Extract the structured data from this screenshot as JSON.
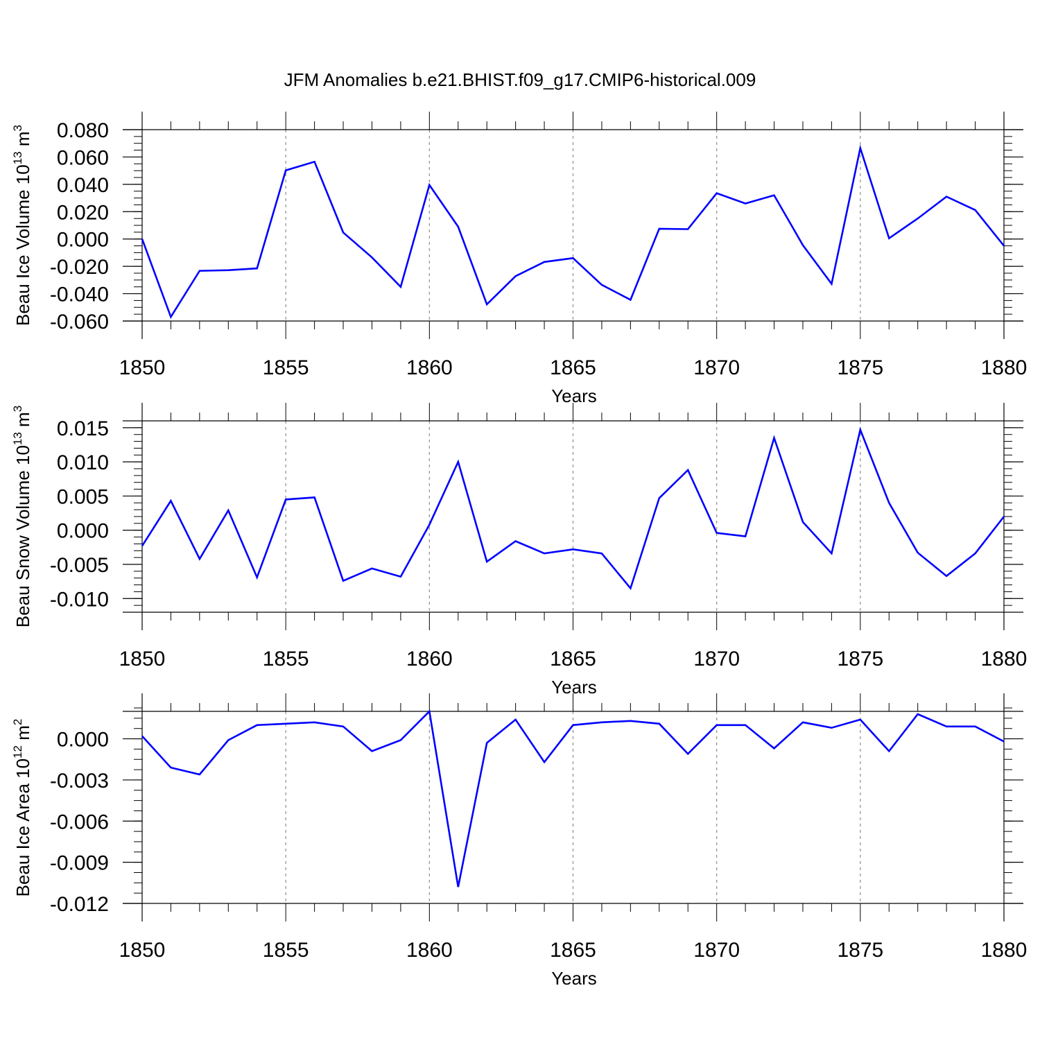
{
  "title": "JFM Anomalies b.e21.BHIST.f09_g17.CMIP6-historical.009",
  "colors": {
    "line": "#0000ff",
    "axis": "#000000",
    "grid": "#8c8c8c",
    "background": "#ffffff"
  },
  "chart_data": [
    {
      "type": "line",
      "title": "",
      "ylabel": "Beau Ice Volume 10",
      "ylabel_exp": "13",
      "ylabel_unit": " m",
      "ylabel_unit_exp": "3",
      "xlabel": "Years",
      "xlim": [
        1850,
        1880
      ],
      "ylim": [
        -0.06,
        0.08
      ],
      "yticks": [
        -0.06,
        -0.04,
        -0.02,
        0.0,
        0.02,
        0.04,
        0.06,
        0.08
      ],
      "ytick_labels": [
        "-0.060",
        "-0.040",
        "-0.020",
        "0.000",
        "0.020",
        "0.040",
        "0.060",
        "0.080"
      ],
      "yminor_step": 0.005,
      "xticks": [
        1850,
        1855,
        1860,
        1865,
        1870,
        1875,
        1880
      ],
      "xtick_labels": [
        "1850",
        "1855",
        "1860",
        "1865",
        "1870",
        "1875",
        "1880"
      ],
      "vgrid": [
        1855,
        1860,
        1865,
        1870,
        1875
      ],
      "x": [
        1850,
        1851,
        1852,
        1853,
        1854,
        1855,
        1856,
        1857,
        1858,
        1859,
        1860,
        1861,
        1862,
        1863,
        1864,
        1865,
        1866,
        1867,
        1868,
        1869,
        1870,
        1871,
        1872,
        1873,
        1874,
        1875,
        1876,
        1877,
        1878,
        1879,
        1880
      ],
      "series": [
        {
          "name": "Beau Ice Volume",
          "values": [
            0.0,
            -0.057,
            -0.0233,
            -0.0228,
            -0.0215,
            0.0502,
            0.0565,
            0.0048,
            -0.0135,
            -0.035,
            0.0395,
            0.009,
            -0.0478,
            -0.0272,
            -0.0168,
            -0.014,
            -0.0335,
            -0.0445,
            0.0075,
            0.0072,
            0.0335,
            0.026,
            0.032,
            -0.0045,
            -0.0328,
            0.0665,
            0.0005,
            0.015,
            0.031,
            0.0212,
            -0.005
          ]
        }
      ]
    },
    {
      "type": "line",
      "title": "",
      "ylabel": "Beau Snow Volume 10",
      "ylabel_exp": "13",
      "ylabel_unit": " m",
      "ylabel_unit_exp": "3",
      "xlabel": "Years",
      "xlim": [
        1850,
        1880
      ],
      "ylim": [
        -0.012,
        0.016
      ],
      "yticks": [
        -0.01,
        -0.005,
        0.0,
        0.005,
        0.01,
        0.015
      ],
      "ytick_labels": [
        "-0.010",
        "-0.005",
        "0.000",
        "0.005",
        "0.010",
        "0.015"
      ],
      "yminor_step": 0.001,
      "xticks": [
        1850,
        1855,
        1860,
        1865,
        1870,
        1875,
        1880
      ],
      "xtick_labels": [
        "1850",
        "1855",
        "1860",
        "1865",
        "1870",
        "1875",
        "1880"
      ],
      "vgrid": [
        1855,
        1860,
        1865,
        1870,
        1875
      ],
      "x": [
        1850,
        1851,
        1852,
        1853,
        1854,
        1855,
        1856,
        1857,
        1858,
        1859,
        1860,
        1861,
        1862,
        1863,
        1864,
        1865,
        1866,
        1867,
        1868,
        1869,
        1870,
        1871,
        1872,
        1873,
        1874,
        1875,
        1876,
        1877,
        1878,
        1879,
        1880
      ],
      "series": [
        {
          "name": "Beau Snow Volume",
          "values": [
            -0.0023,
            0.0043,
            -0.0042,
            0.0029,
            -0.0069,
            0.0045,
            0.0048,
            -0.0074,
            -0.0056,
            -0.0068,
            0.0008,
            0.01,
            -0.0046,
            -0.0016,
            -0.0034,
            -0.0028,
            -0.0034,
            -0.0085,
            0.0047,
            0.0088,
            -0.0004,
            -0.0009,
            0.0135,
            0.0012,
            -0.0034,
            0.0147,
            0.004,
            -0.0033,
            -0.0067,
            -0.0034,
            0.002
          ]
        }
      ]
    },
    {
      "type": "line",
      "title": "",
      "ylabel": "Beau Ice Area 10",
      "ylabel_exp": "12",
      "ylabel_unit": " m",
      "ylabel_unit_exp": "2",
      "xlabel": "Years",
      "xlim": [
        1850,
        1880
      ],
      "ylim": [
        -0.012,
        0.002
      ],
      "yticks": [
        -0.012,
        -0.009,
        -0.006,
        -0.003,
        0.0
      ],
      "ytick_labels": [
        "-0.012",
        "-0.009",
        "-0.006",
        "-0.003",
        "0.000"
      ],
      "yminor_step": 0.00075,
      "xticks": [
        1850,
        1855,
        1860,
        1865,
        1870,
        1875,
        1880
      ],
      "xtick_labels": [
        "1850",
        "1855",
        "1860",
        "1865",
        "1870",
        "1875",
        "1880"
      ],
      "vgrid": [
        1855,
        1860,
        1865,
        1870,
        1875
      ],
      "x": [
        1850,
        1851,
        1852,
        1853,
        1854,
        1855,
        1856,
        1857,
        1858,
        1859,
        1860,
        1861,
        1862,
        1863,
        1864,
        1865,
        1866,
        1867,
        1868,
        1869,
        1870,
        1871,
        1872,
        1873,
        1874,
        1875,
        1876,
        1877,
        1878,
        1879,
        1880
      ],
      "series": [
        {
          "name": "Beau Ice Area",
          "values": [
            0.0002,
            -0.0021,
            -0.0026,
            -0.0001,
            0.001,
            0.0011,
            0.0012,
            0.0009,
            -0.0009,
            -0.0001,
            0.002,
            -0.0108,
            -0.0003,
            0.0014,
            -0.0017,
            0.001,
            0.0012,
            0.0013,
            0.0011,
            -0.0011,
            0.001,
            0.001,
            -0.0007,
            0.0012,
            0.0008,
            0.0014,
            -0.0009,
            0.0018,
            0.0009,
            0.0009,
            -0.0002
          ]
        }
      ]
    }
  ]
}
